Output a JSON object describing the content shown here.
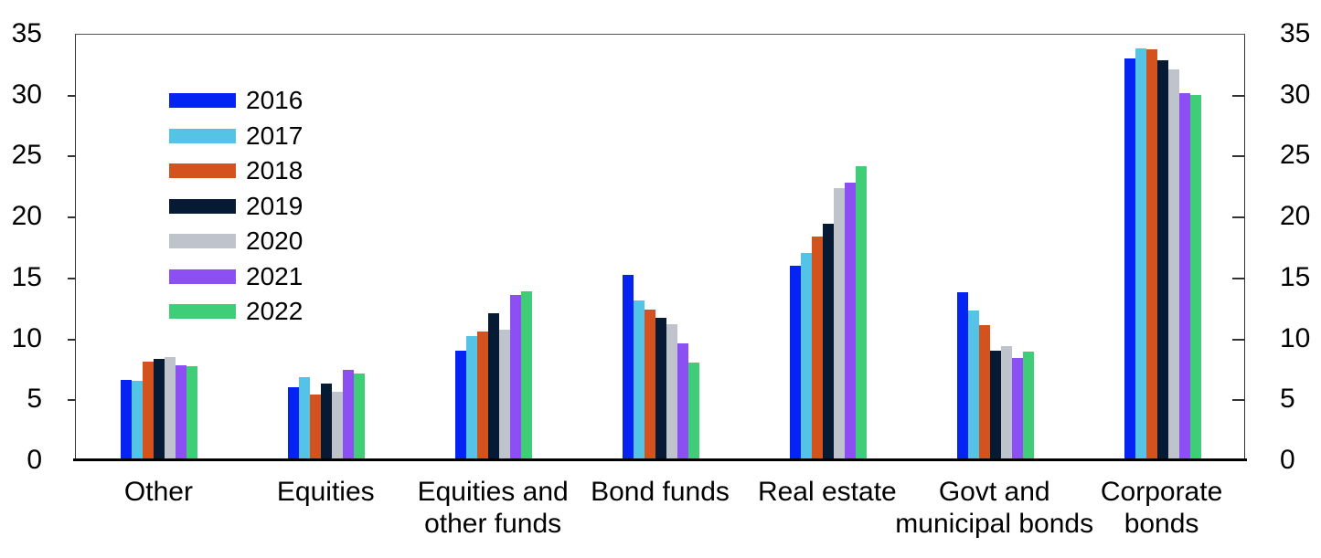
{
  "chart_data": {
    "type": "bar",
    "title": "",
    "xlabel": "",
    "ylabel": "",
    "ylim": [
      0,
      35
    ],
    "yticks": [
      0,
      5,
      10,
      15,
      20,
      25,
      30,
      35
    ],
    "grid": false,
    "legend_position": "top-left-inside",
    "dual_axis_labels": true,
    "categories": [
      "Other",
      "Equities",
      "Equities and\nother funds",
      "Bond funds",
      "Real estate",
      "Govt and\nmunicipal bonds",
      "Corporate\nbonds"
    ],
    "series": [
      {
        "name": "2016",
        "color": "#0523f2",
        "values": [
          6.6,
          6.0,
          9.0,
          15.2,
          16.0,
          13.8,
          33.0
        ]
      },
      {
        "name": "2017",
        "color": "#54c3e6",
        "values": [
          6.5,
          6.8,
          10.2,
          13.1,
          17.0,
          12.3,
          33.8
        ]
      },
      {
        "name": "2018",
        "color": "#d4521e",
        "values": [
          8.1,
          5.4,
          10.6,
          12.4,
          18.4,
          11.1,
          33.7
        ]
      },
      {
        "name": "2019",
        "color": "#071a33",
        "values": [
          8.3,
          6.3,
          12.1,
          11.7,
          19.4,
          9.0,
          32.8
        ]
      },
      {
        "name": "2020",
        "color": "#bfc4cc",
        "values": [
          8.5,
          5.6,
          10.7,
          11.2,
          22.3,
          9.4,
          32.1
        ]
      },
      {
        "name": "2021",
        "color": "#8c4ff4",
        "values": [
          7.8,
          7.4,
          13.6,
          9.6,
          22.8,
          8.4,
          30.1
        ]
      },
      {
        "name": "2022",
        "color": "#3fce77",
        "values": [
          7.7,
          7.1,
          13.9,
          8.0,
          24.1,
          8.9,
          30.0
        ]
      }
    ],
    "axis_text_color": "#000000",
    "frame_color": "#333333",
    "baseline_color": "#000000"
  }
}
